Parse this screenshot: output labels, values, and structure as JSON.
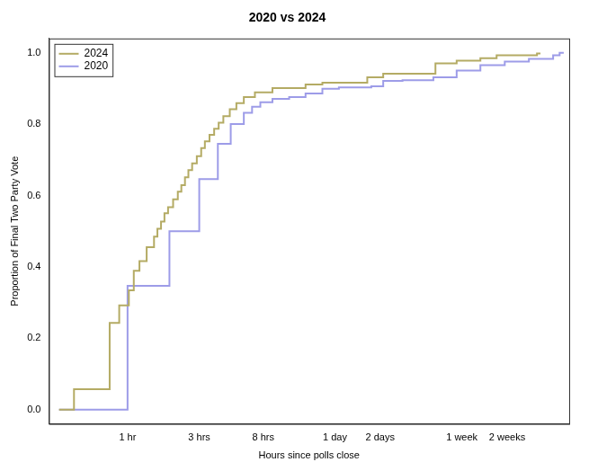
{
  "chart_data": {
    "type": "line",
    "title": "2020 vs 2024",
    "x_label": "Hours since polls close",
    "y_label": "Proportion of Final Two Party Vote",
    "log": "x",
    "grid": false,
    "legend": "upper left",
    "xlim": [
      0.3,
      870
    ],
    "xticks": [
      {
        "value": 1,
        "label": "1 hr"
      },
      {
        "value": 3,
        "label": "3 hrs"
      },
      {
        "value": 8,
        "label": "8 hrs"
      },
      {
        "value": 24,
        "label": "1 day"
      },
      {
        "value": 48,
        "label": "2 days"
      },
      {
        "value": 168,
        "label": "1 week"
      },
      {
        "value": 336,
        "label": "2 weeks"
      }
    ],
    "ylim": [
      -0.04,
      1.04
    ],
    "yticks": [
      {
        "value": 0,
        "label": "0.0"
      },
      0.2,
      0.4,
      0.6,
      0.8,
      {
        "value": 1,
        "label": "1.0"
      }
    ],
    "series": [
      {
        "name": "2024",
        "color": "#b4ab64",
        "line_style": "step",
        "x": [
          0.35,
          0.44,
          0.76,
          0.88,
          1.02,
          1.1,
          1.2,
          1.34,
          1.5,
          1.58,
          1.67,
          1.76,
          1.86,
          2.01,
          2.16,
          2.28,
          2.41,
          2.54,
          2.69,
          2.89,
          3.09,
          3.27,
          3.51,
          3.77,
          4.04,
          4.34,
          4.79,
          5.3,
          5.94,
          7.04,
          9.21,
          15.3,
          19.8,
          39.4,
          50.3,
          112,
          155,
          223,
          286,
          531,
          560
        ],
        "values": [
          0,
          0.057,
          0.243,
          0.292,
          0.334,
          0.389,
          0.416,
          0.455,
          0.485,
          0.507,
          0.527,
          0.55,
          0.567,
          0.589,
          0.611,
          0.629,
          0.651,
          0.671,
          0.69,
          0.71,
          0.733,
          0.752,
          0.77,
          0.787,
          0.804,
          0.822,
          0.842,
          0.859,
          0.876,
          0.889,
          0.901,
          0.911,
          0.916,
          0.931,
          0.941,
          0.97,
          0.978,
          0.985,
          0.993,
          0.998,
          0.998
        ]
      },
      {
        "name": "2020",
        "color": "#9d9ce8",
        "line_style": "step",
        "x": [
          0.35,
          1.0,
          1.9,
          3.0,
          3.99,
          4.86,
          5.94,
          6.74,
          7.65,
          9.21,
          11.9,
          15.3,
          19.8,
          25.5,
          41.9,
          50.3,
          67.6,
          108.5,
          155,
          223,
          324,
          469,
          680,
          751,
          800
        ],
        "values": [
          0,
          0.347,
          0.5,
          0.646,
          0.745,
          0.8,
          0.832,
          0.849,
          0.861,
          0.871,
          0.876,
          0.886,
          0.899,
          0.903,
          0.906,
          0.921,
          0.923,
          0.931,
          0.95,
          0.965,
          0.975,
          0.983,
          0.993,
          1.0,
          1.0
        ]
      }
    ]
  }
}
